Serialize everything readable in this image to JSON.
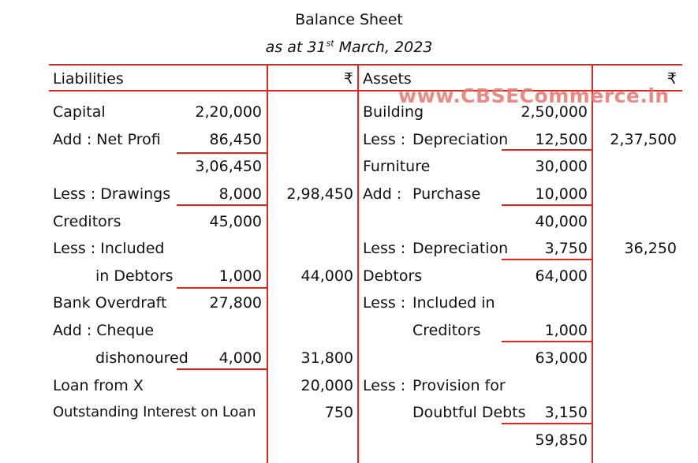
{
  "heading": {
    "title": "Balance Sheet",
    "subtitle_pre": "as at 31",
    "subtitle_sup": "st",
    "subtitle_post": " March, 2023"
  },
  "watermark": "www.CBSECommerce.in",
  "columns": {
    "liabilities": "Liabilities",
    "rupee_left": "₹",
    "assets": "Assets",
    "rupee_right": "₹"
  },
  "liabilities": {
    "capital": "Capital",
    "capital_amt": "2,20,000",
    "net_profit": "Add : Net Profi",
    "net_profit_amt": "86,450",
    "subtotal_amt": "3,06,450",
    "drawings": "Less : Drawings",
    "drawings_amt": "8,000",
    "capital_total": "2,98,450",
    "creditors": "Creditors",
    "creditors_amt": "45,000",
    "less_included": "Less : Included",
    "in_debtors": "in Debtors",
    "in_debtors_amt": "1,000",
    "creditors_total": "44,000",
    "bank_od": "Bank Overdraft",
    "bank_od_amt": "27,800",
    "add_cheque": "Add : Cheque",
    "dishonoured": "dishonoured",
    "dishonoured_amt": "4,000",
    "bank_od_total": "31,800",
    "loan": "Loan from X",
    "loan_total": "20,000",
    "interest": "Outstanding Interest on Loan",
    "interest_total": "750"
  },
  "assets": {
    "building": "Building",
    "building_amt": "2,50,000",
    "less1": "Less :",
    "depreciation1": "Depreciation",
    "depreciation1_amt": "12,500",
    "building_total": "2,37,500",
    "furniture": "Furniture",
    "furniture_amt": "30,000",
    "add1": "Add :",
    "purchase": "Purchase",
    "purchase_amt": "10,000",
    "furniture_sub": "40,000",
    "less2": "Less :",
    "depreciation2": "Depreciation",
    "depreciation2_amt": "3,750",
    "furniture_total": "36,250",
    "debtors": "Debtors",
    "debtors_amt": "64,000",
    "less3": "Less :",
    "included_in": "Included in",
    "creditors_word": "Creditors",
    "creditors_amt": "1,000",
    "debtors_sub": "63,000",
    "less4": "Less :",
    "provision_for": "Provision for",
    "doubtful_debts": "Doubtful Debts",
    "provision_amt": "3,150",
    "debtors_net": "59,850"
  }
}
